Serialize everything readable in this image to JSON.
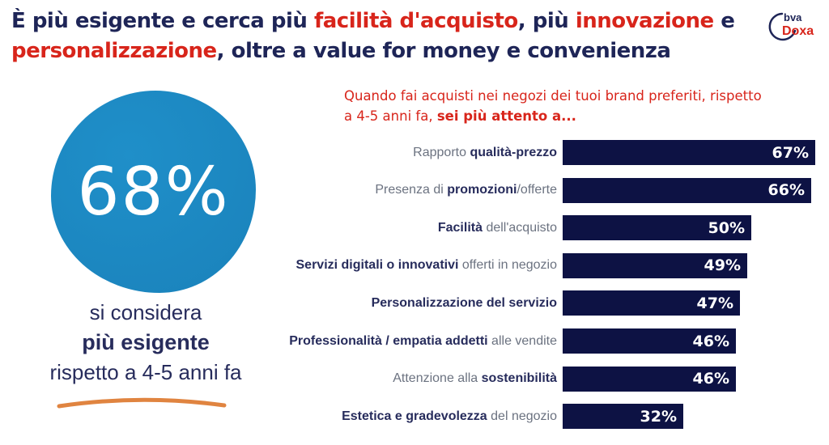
{
  "colors": {
    "navy": "#1e2557",
    "red": "#d8251b",
    "bar-navy": "#0d1244",
    "circle-blue": "#1a82bb",
    "circle-blue-light": "#1f8fc9",
    "label-gray": "#6b7280",
    "label-navy": "#272c5c",
    "orange": "#e08440"
  },
  "title": {
    "lines": [
      {
        "segments": [
          {
            "text": "È più esigente e cerca più ",
            "color": "navy"
          },
          {
            "text": "facilità d'acquisto",
            "color": "red"
          },
          {
            "text": ", più ",
            "color": "navy"
          },
          {
            "text": "innovazione",
            "color": "red"
          },
          {
            "text": " e",
            "color": "navy"
          }
        ]
      },
      {
        "segments": [
          {
            "text": "personalizzazione",
            "color": "red"
          },
          {
            "text": ", oltre a value for money e convenienza",
            "color": "navy"
          }
        ]
      }
    ]
  },
  "logo": {
    "top": "bva",
    "bottom": "Doxa"
  },
  "highlight": {
    "value": "68%",
    "caption_lines": [
      {
        "text": "si considera",
        "bold": false
      },
      {
        "text": "più esigente",
        "bold": true
      },
      {
        "text": "rispetto a 4-5 anni fa",
        "bold": false
      }
    ]
  },
  "question": {
    "line1": "Quando fai acquisti nei negozi dei tuoi brand preferiti, rispetto",
    "line2_regular": "a 4-5 anni fa, ",
    "line2_bold": "sei più attento a..."
  },
  "chart_data": {
    "type": "bar",
    "orientation": "horizontal",
    "title": "Quando fai acquisti nei negozi dei tuoi brand preferiti, rispetto a 4-5 anni fa, sei più attento a...",
    "unit": "percent",
    "xlim": [
      0,
      100
    ],
    "value_labels_inside_bars": true,
    "highlight_stat": {
      "value": 68,
      "label": "si considera più esigente rispetto a 4-5 anni fa"
    },
    "categories": [
      "Rapporto qualità-prezzo",
      "Presenza di promozioni/offerte",
      "Facilità dell'acquisto",
      "Servizi digitali o innovativi offerti in negozio",
      "Personalizzazione del servizio",
      "Professionalità / empatia addetti alle vendite",
      "Attenzione alla sostenibilità",
      "Estetica e gradevolezza del negozio"
    ],
    "values": [
      67,
      66,
      50,
      49,
      47,
      46,
      46,
      32
    ],
    "rows": [
      {
        "value": 67,
        "display": "67%",
        "segments": [
          {
            "text": "Rapporto ",
            "bold": false
          },
          {
            "text": "qualità-prezzo",
            "bold": true
          }
        ]
      },
      {
        "value": 66,
        "display": "66%",
        "segments": [
          {
            "text": "Presenza di ",
            "bold": false
          },
          {
            "text": "promozioni",
            "bold": true
          },
          {
            "text": "/offerte",
            "bold": false
          }
        ]
      },
      {
        "value": 50,
        "display": "50%",
        "segments": [
          {
            "text": "Facilità",
            "bold": true
          },
          {
            "text": " dell'acquisto",
            "bold": false
          }
        ]
      },
      {
        "value": 49,
        "display": "49%",
        "segments": [
          {
            "text": "Servizi digitali o innovativi",
            "bold": true
          },
          {
            "text": " offerti in negozio",
            "bold": false
          }
        ]
      },
      {
        "value": 47,
        "display": "47%",
        "segments": [
          {
            "text": "Personalizzazione del servizio",
            "bold": true
          }
        ]
      },
      {
        "value": 46,
        "display": "46%",
        "segments": [
          {
            "text": "Professionalità / empatia addetti",
            "bold": true
          },
          {
            "text": " alle vendite",
            "bold": false
          }
        ]
      },
      {
        "value": 46,
        "display": "46%",
        "segments": [
          {
            "text": "Attenzione alla ",
            "bold": false
          },
          {
            "text": "sostenibilità",
            "bold": true
          }
        ]
      },
      {
        "value": 32,
        "display": "32%",
        "segments": [
          {
            "text": "Estetica e gradevolezza",
            "bold": true
          },
          {
            "text": " del negozio",
            "bold": false
          }
        ]
      }
    ]
  }
}
